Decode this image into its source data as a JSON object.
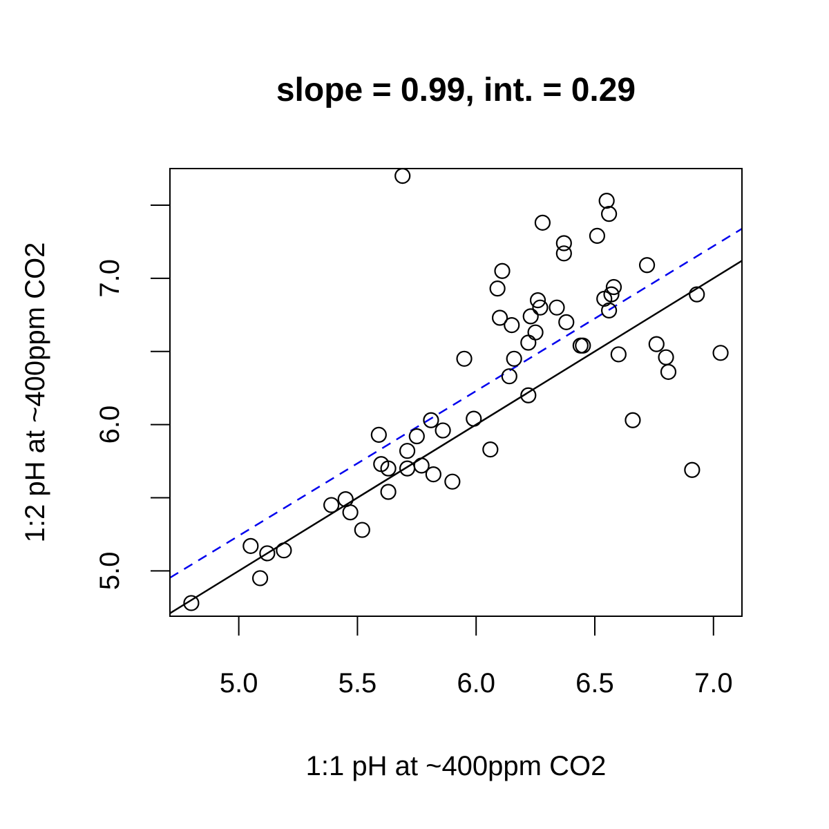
{
  "chart_data": {
    "type": "scatter",
    "title": "slope = 0.99, int. = 0.29",
    "xlabel": "1:1 pH at ~400ppm CO2",
    "ylabel": "1:2 pH at ~400ppm CO2",
    "xlim": [
      4.71,
      7.12
    ],
    "ylim": [
      4.69,
      7.75
    ],
    "x_ticks": [
      5.0,
      5.5,
      6.0,
      6.5,
      7.0
    ],
    "x_tick_labels": [
      "5.0",
      "5.5",
      "6.0",
      "6.5",
      "7.0"
    ],
    "y_ticks": [
      5.0,
      5.5,
      6.0,
      6.5,
      7.0,
      7.5
    ],
    "y_tick_labels": [
      "5.0",
      "",
      "6.0",
      "",
      "7.0",
      ""
    ],
    "grid": false,
    "lines": [
      {
        "style": "solid",
        "color": "#000000",
        "slope": 1.0,
        "intercept": 0.0
      },
      {
        "style": "dashed",
        "color": "#0000ee",
        "slope": 0.99,
        "intercept": 0.29
      }
    ],
    "points": [
      [
        4.8,
        4.78
      ],
      [
        5.05,
        5.17
      ],
      [
        5.09,
        4.95
      ],
      [
        5.12,
        5.12
      ],
      [
        5.19,
        5.14
      ],
      [
        5.39,
        5.45
      ],
      [
        5.45,
        5.49
      ],
      [
        5.47,
        5.4
      ],
      [
        5.52,
        5.28
      ],
      [
        5.59,
        5.93
      ],
      [
        5.6,
        5.73
      ],
      [
        5.63,
        5.7
      ],
      [
        5.63,
        5.54
      ],
      [
        5.69,
        7.7
      ],
      [
        5.71,
        5.7
      ],
      [
        5.71,
        5.82
      ],
      [
        5.75,
        5.92
      ],
      [
        5.77,
        5.72
      ],
      [
        5.81,
        6.03
      ],
      [
        5.82,
        5.66
      ],
      [
        5.86,
        5.96
      ],
      [
        5.9,
        5.61
      ],
      [
        5.95,
        6.45
      ],
      [
        5.99,
        6.04
      ],
      [
        6.06,
        5.83
      ],
      [
        6.09,
        6.93
      ],
      [
        6.1,
        6.73
      ],
      [
        6.11,
        7.05
      ],
      [
        6.14,
        6.33
      ],
      [
        6.15,
        6.68
      ],
      [
        6.16,
        6.45
      ],
      [
        6.22,
        6.56
      ],
      [
        6.22,
        6.2
      ],
      [
        6.23,
        6.74
      ],
      [
        6.25,
        6.63
      ],
      [
        6.26,
        6.85
      ],
      [
        6.27,
        6.8
      ],
      [
        6.28,
        7.38
      ],
      [
        6.34,
        6.8
      ],
      [
        6.37,
        7.24
      ],
      [
        6.37,
        7.17
      ],
      [
        6.38,
        6.7
      ],
      [
        6.44,
        6.54
      ],
      [
        6.45,
        6.54
      ],
      [
        6.51,
        7.29
      ],
      [
        6.54,
        6.86
      ],
      [
        6.55,
        7.53
      ],
      [
        6.56,
        7.44
      ],
      [
        6.56,
        6.78
      ],
      [
        6.57,
        6.89
      ],
      [
        6.58,
        6.94
      ],
      [
        6.6,
        6.48
      ],
      [
        6.66,
        6.03
      ],
      [
        6.72,
        7.09
      ],
      [
        6.76,
        6.55
      ],
      [
        6.8,
        6.46
      ],
      [
        6.81,
        6.36
      ],
      [
        6.91,
        5.69
      ],
      [
        6.93,
        6.89
      ],
      [
        7.03,
        6.49
      ]
    ]
  }
}
